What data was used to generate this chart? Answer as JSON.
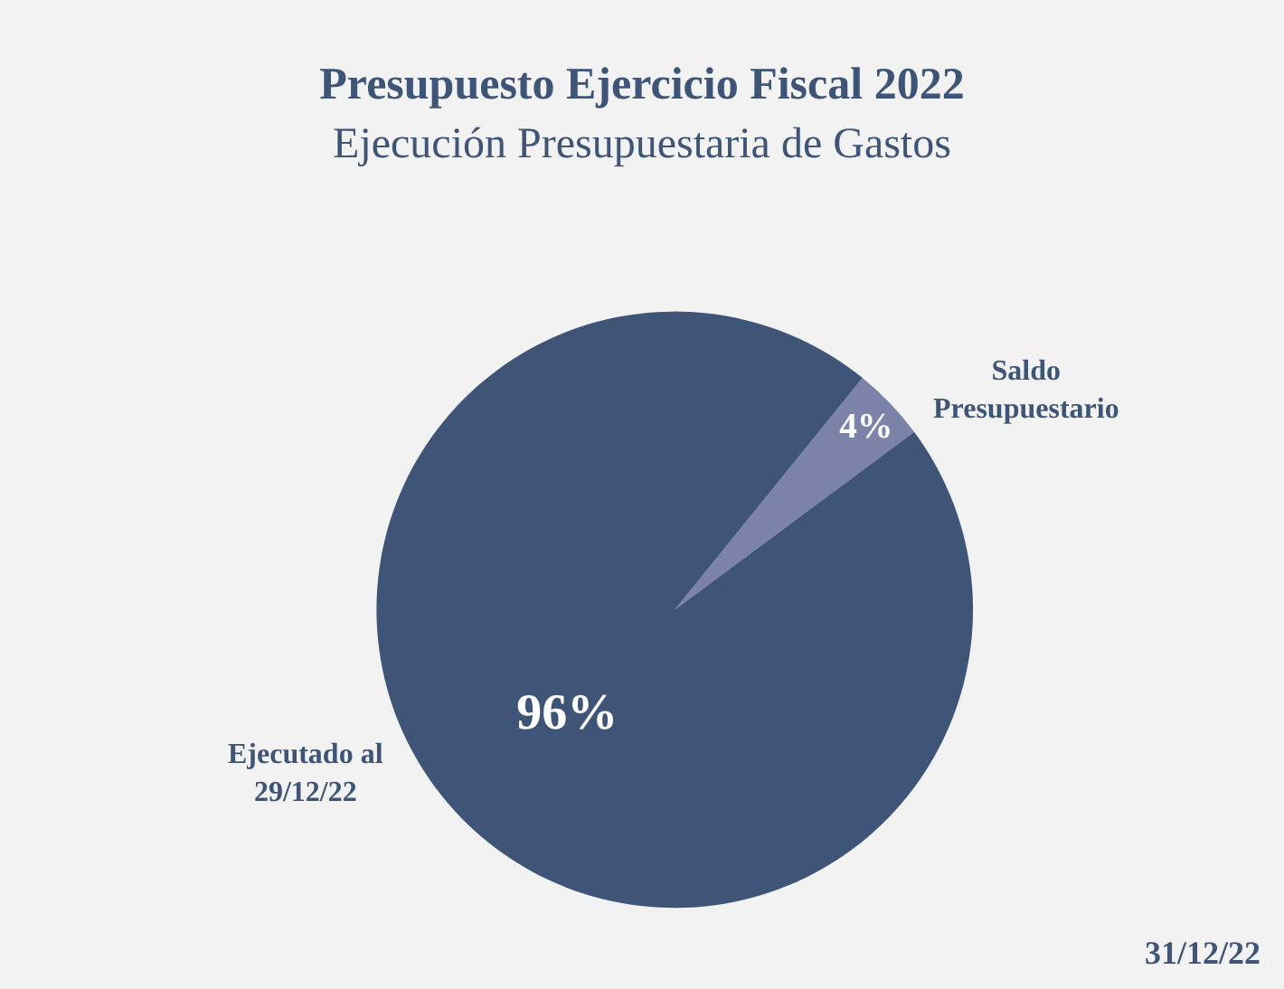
{
  "chart_data": {
    "type": "pie",
    "title": "Presupuesto Ejercicio Fiscal 2022",
    "subtitle": "Ejecución Presupuestaria de Gastos",
    "categories": [
      "Saldo Presupuestario",
      "Ejecutado al 29/12/22"
    ],
    "values": [
      4,
      96
    ],
    "value_labels": [
      "4%",
      "96%"
    ],
    "colors": [
      "#7d82a9",
      "#3f5577"
    ],
    "legend": false,
    "annotations": [
      "31/12/22"
    ]
  }
}
